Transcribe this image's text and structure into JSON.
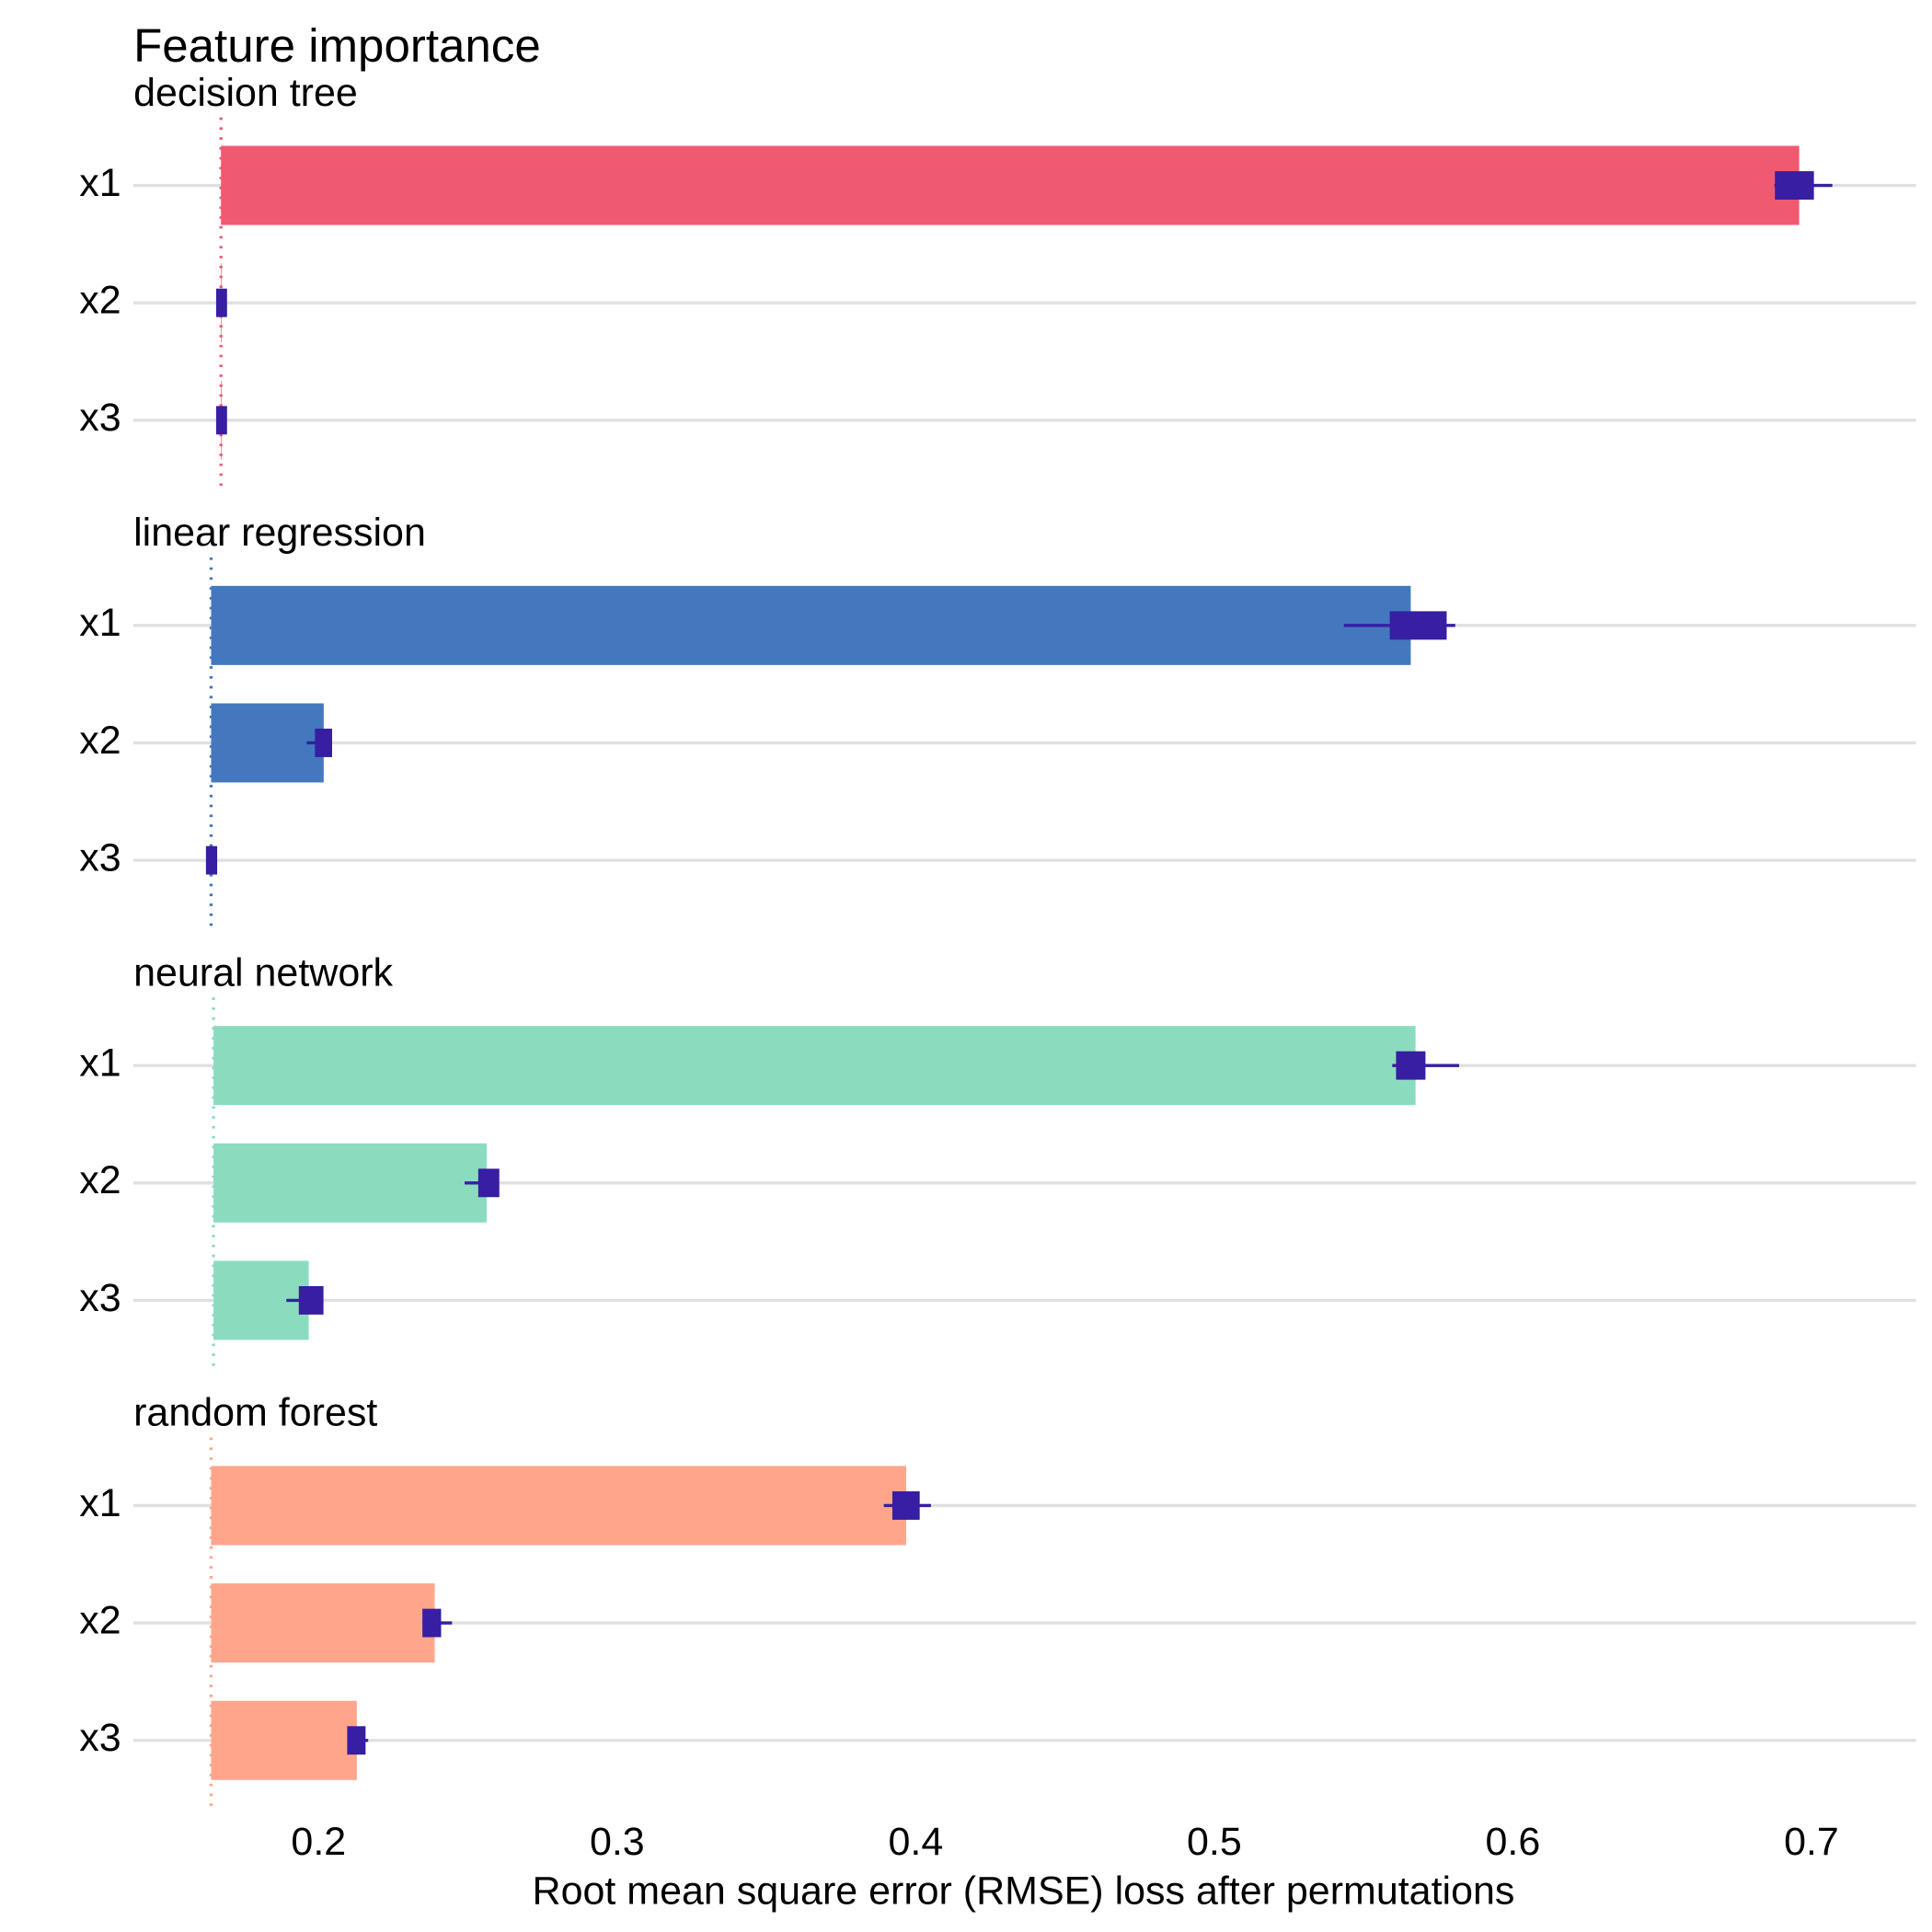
{
  "chart_data": {
    "type": "bar",
    "title": "Feature importance",
    "x_label": "Root mean square error (RMSE) loss after permutations",
    "xlim": [
      0.138,
      0.735
    ],
    "xticks": [
      0.2,
      0.3,
      0.4,
      0.5,
      0.6,
      0.7
    ],
    "box_color": "#371ea3",
    "grid": true,
    "panels": [
      {
        "title": "decision tree",
        "color": "#f05a71",
        "baseline": 0.1673,
        "categories": [
          "x1",
          "x2",
          "x3"
        ],
        "values": [
          0.6959,
          0.1675,
          0.1675
        ],
        "boxes": [
          {
            "min": 0.6876,
            "q1": 0.6886,
            "q3": 0.7,
            "max": 0.707
          },
          {
            "min": 0.1665,
            "q1": 0.1665,
            "q3": 0.1685,
            "max": 0.1685
          },
          {
            "min": 0.1665,
            "q1": 0.1665,
            "q3": 0.1685,
            "max": 0.1685
          }
        ]
      },
      {
        "title": "linear regression",
        "color": "#4378bf",
        "baseline": 0.164,
        "categories": [
          "x1",
          "x2",
          "x3"
        ],
        "values": [
          0.5658,
          0.2017,
          0.164
        ],
        "boxes": [
          {
            "min": 0.5434,
            "q1": 0.5596,
            "q3": 0.577,
            "max": 0.5807
          },
          {
            "min": 0.196,
            "q1": 0.1996,
            "q3": 0.2037,
            "max": 0.2037
          },
          {
            "min": 0.1631,
            "q1": 0.1631,
            "q3": 0.1652,
            "max": 0.1652
          }
        ]
      },
      {
        "title": "neural network",
        "color": "#8bdcbe",
        "baseline": 0.1648,
        "categories": [
          "x1",
          "x2",
          "x3"
        ],
        "values": [
          0.5674,
          0.2563,
          0.1967
        ],
        "boxes": [
          {
            "min": 0.5596,
            "q1": 0.5617,
            "q3": 0.5699,
            "max": 0.582
          },
          {
            "min": 0.2489,
            "q1": 0.2543,
            "q3": 0.2597,
            "max": 0.2597
          },
          {
            "min": 0.1892,
            "q1": 0.1942,
            "q3": 0.2008,
            "max": 0.2008
          }
        ]
      },
      {
        "title": "random forest",
        "color": "#ffa58c",
        "baseline": 0.164,
        "categories": [
          "x1",
          "x2",
          "x3"
        ],
        "values": [
          0.3968,
          0.2389,
          0.2128
        ],
        "boxes": [
          {
            "min": 0.3893,
            "q1": 0.393,
            "q3": 0.4005,
            "max": 0.4051
          },
          {
            "min": 0.2348,
            "q1": 0.2356,
            "q3": 0.2402,
            "max": 0.2447
          },
          {
            "min": 0.2099,
            "q1": 0.2104,
            "q3": 0.2149,
            "max": 0.2166
          }
        ]
      }
    ]
  }
}
